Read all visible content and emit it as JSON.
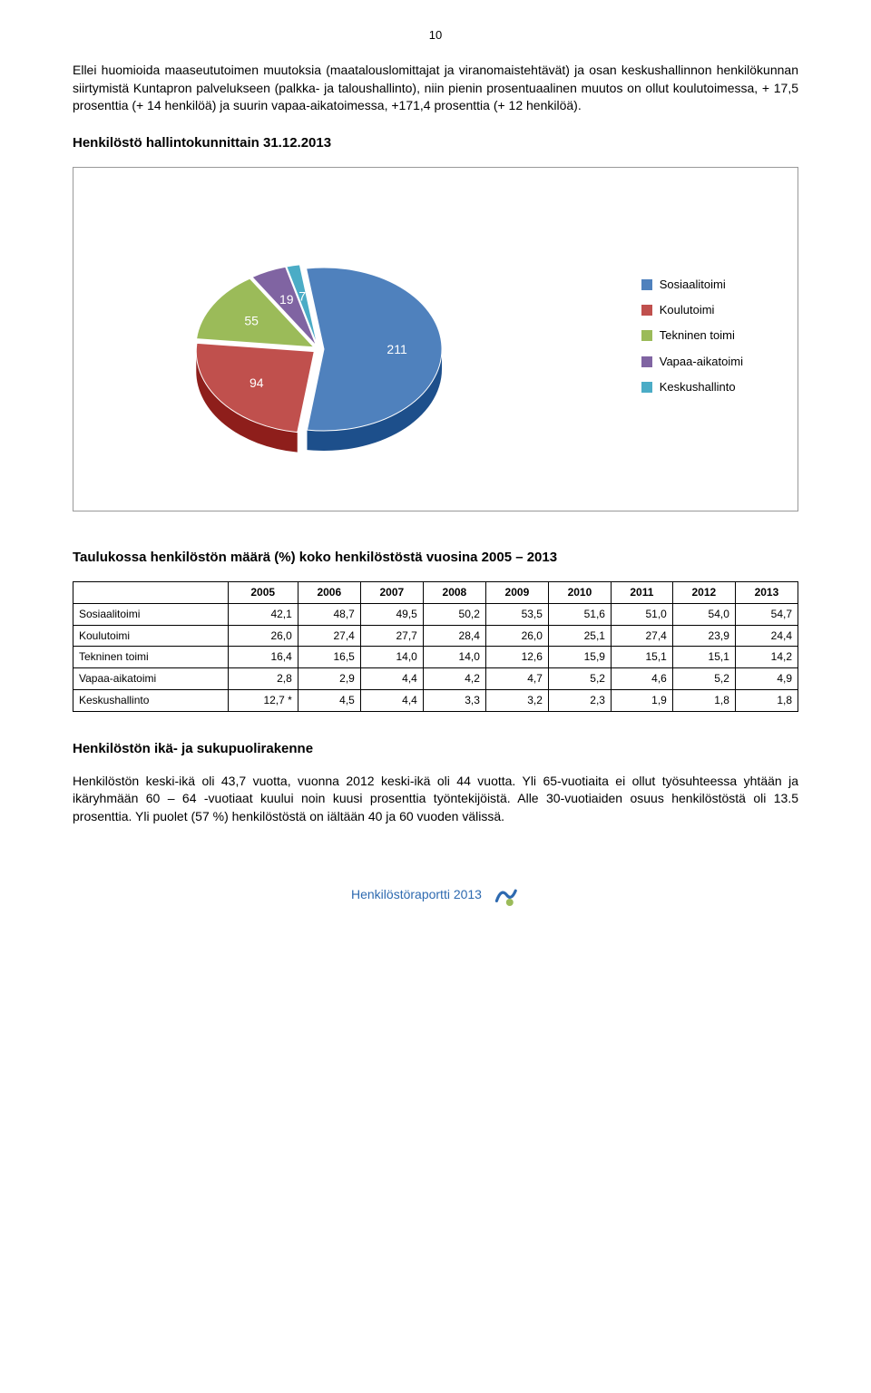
{
  "page_number": "10",
  "intro_paragraph": "Ellei huomioida maaseututoimen muutoksia (maatalouslomittajat ja viranomaistehtävät) ja osan keskushallinnon henkilökunnan siirtymistä Kuntapron palvelukseen (palkka- ja taloushallinto), niin pienin prosentuaalinen muutos on ollut koulutoimessa, + 17,5 prosenttia (+ 14 henkilöä) ja suurin vapaa-aikatoimessa, +171,4 prosenttia (+ 12 henkilöä).",
  "heading1": "Henkilöstö hallintokunnittain 31.12.2013",
  "chart": {
    "type": "pie",
    "slices": [
      {
        "label": "Sosiaalitoimi",
        "value": 211,
        "color": "#4f81bd"
      },
      {
        "label": "Koulutoimi",
        "value": 94,
        "color": "#c0504d"
      },
      {
        "label": "Tekninen toimi",
        "value": 55,
        "color": "#9bbb59"
      },
      {
        "label": "Vapaa-aikatoimi",
        "value": 19,
        "color": "#8064a2"
      },
      {
        "label": "Keskushallinto",
        "value": 7,
        "color": "#4bacc6"
      }
    ],
    "label_color": "#ffffff",
    "label_fontsize": 14,
    "border_color": "#999999",
    "background": "#ffffff"
  },
  "table_heading": "Taulukossa henkilöstön määrä (%) koko henkilöstöstä vuosina 2005 – 2013",
  "table": {
    "columns": [
      "",
      "2005",
      "2006",
      "2007",
      "2008",
      "2009",
      "2010",
      "2011",
      "2012",
      "2013"
    ],
    "rows": [
      [
        "Sosiaalitoimi",
        "42,1",
        "48,7",
        "49,5",
        "50,2",
        "53,5",
        "51,6",
        "51,0",
        "54,0",
        "54,7"
      ],
      [
        "Koulutoimi",
        "26,0",
        "27,4",
        "27,7",
        "28,4",
        "26,0",
        "25,1",
        "27,4",
        "23,9",
        "24,4"
      ],
      [
        "Tekninen toimi",
        "16,4",
        "16,5",
        "14,0",
        "14,0",
        "12,6",
        "15,9",
        "15,1",
        "15,1",
        "14,2"
      ],
      [
        "Vapaa-aikatoimi",
        "2,8",
        "2,9",
        "4,4",
        "4,2",
        "4,7",
        "5,2",
        "4,6",
        "5,2",
        "4,9"
      ],
      [
        "Keskushallinto",
        "12,7 *",
        "4,5",
        "4,4",
        "3,3",
        "3,2",
        "2,3",
        "1,9",
        "1,8",
        "1,8"
      ]
    ]
  },
  "heading2": "Henkilöstön ikä- ja sukupuolirakenne",
  "para2": "Henkilöstön keski-ikä oli 43,7 vuotta, vuonna 2012 keski-ikä oli 44 vuotta. Yli 65-vuotiaita ei ollut työsuhteessa yhtään ja ikäryhmään 60 – 64 -vuotiaat kuului noin kuusi prosenttia työntekijöistä. Alle 30-vuotiaiden osuus henkilöstöstä oli 13.5 prosenttia. Yli puolet (57 %) henkilöstöstä on iältään 40 ja 60 vuoden välissä.",
  "footer_text": "Henkilöstöraportti 2013"
}
